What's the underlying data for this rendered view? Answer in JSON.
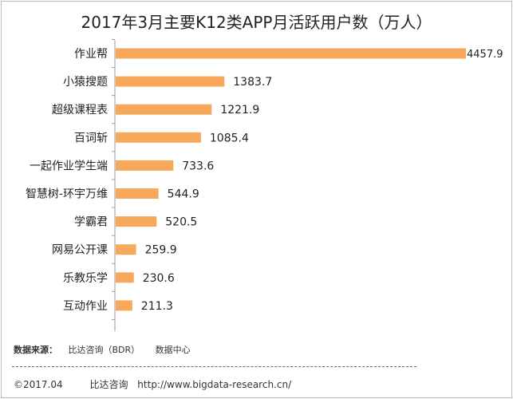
{
  "chart_data": {
    "type": "bar",
    "orientation": "horizontal",
    "title": "2017年3月主要K12类APP月活跃用户数（万人）",
    "categories": [
      "作业帮",
      "小猿搜题",
      "超级课程表",
      "百词斩",
      "一起作业学生端",
      "智慧树-环宇万维",
      "学霸君",
      "网易公开课",
      "乐教乐学",
      "互动作业"
    ],
    "values": [
      4457.9,
      1383.7,
      1221.9,
      1085.4,
      733.6,
      544.9,
      520.5,
      259.9,
      230.6,
      211.3
    ],
    "value_labels": [
      "4457.9",
      "1383.7",
      "1221.9",
      "1085.4",
      "733.6",
      "544.9",
      "520.5",
      "259.9",
      "230.6",
      "211.3"
    ],
    "xlabel": "",
    "ylabel": "",
    "xlim": [
      0,
      4457.9
    ],
    "grid": false,
    "bar_color": "#F7A85A",
    "axis_color": "#999999"
  },
  "source": {
    "label": "数据来源：",
    "org": "比达咨询（BDR）",
    "center": "数据中心"
  },
  "footer": {
    "copyright": "©2017.04",
    "company": "比达咨询",
    "url": "http://www.bigdata-research.cn/"
  }
}
